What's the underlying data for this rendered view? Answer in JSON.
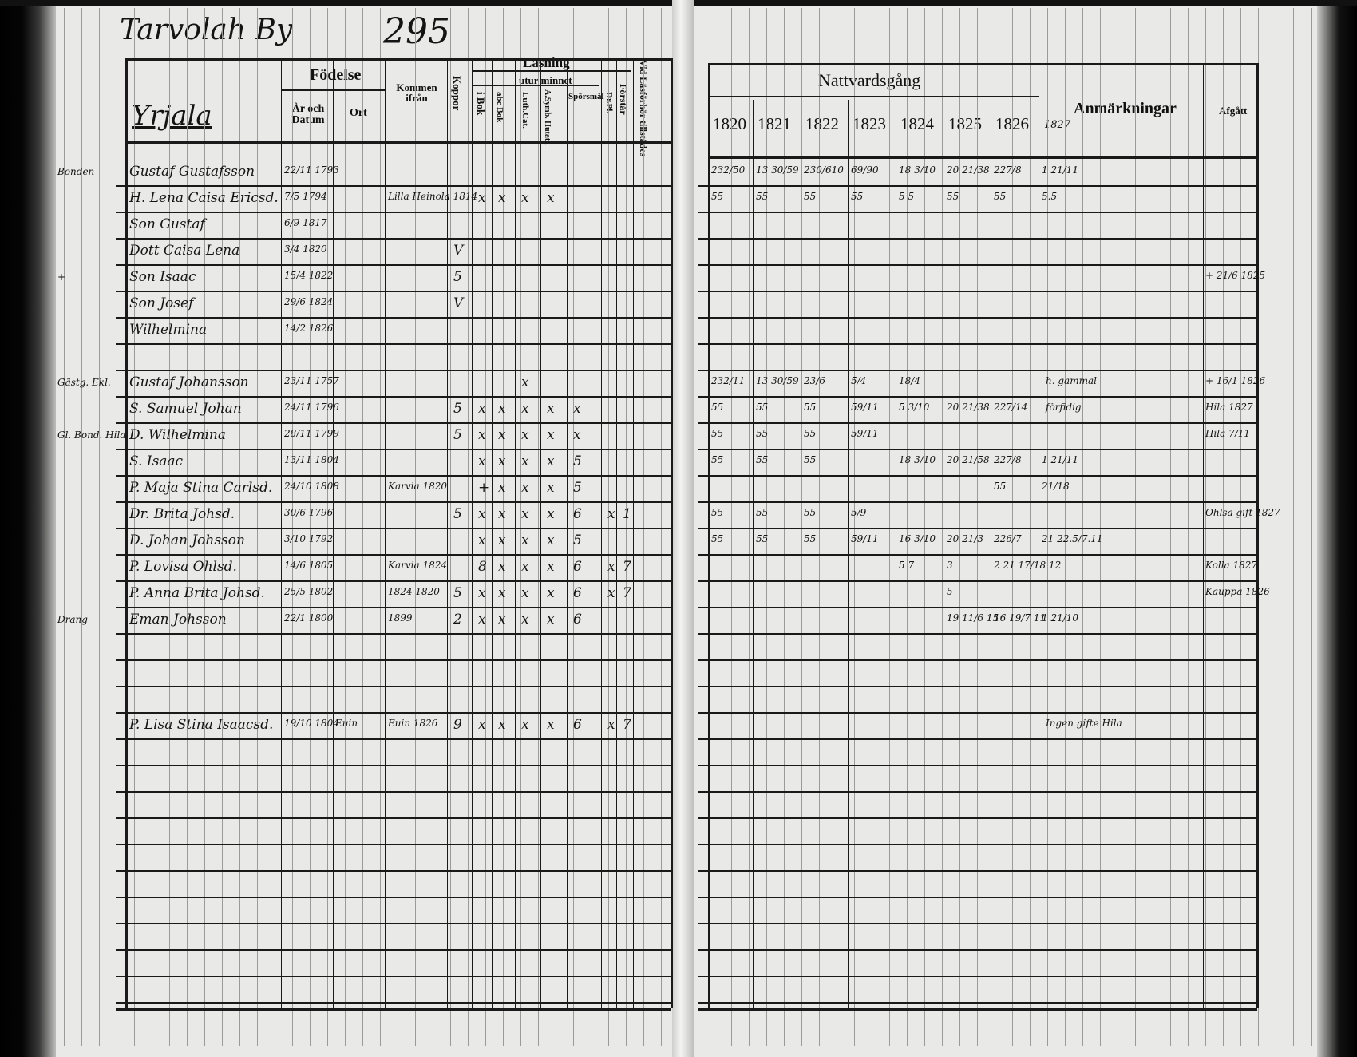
{
  "header": {
    "village": "Tarvolah By",
    "page_number": "295",
    "parish": "Yrjala"
  },
  "left_headers": {
    "fodelse": "Födelse",
    "ar_och_datum": "År och Datum",
    "ort": "Ort",
    "kommen_ifran": "Kommen ifrån",
    "koppor": "Koppor",
    "lasning": "Läsning",
    "utur_minnet": "utur minnet",
    "i_bok": "i Bok",
    "abc_bok": "abc Bok",
    "luth_cat": "Luth.Cat.",
    "a_symb": "A.Symb. Hutatu",
    "sporsmal": "Spörsmål",
    "dr_pl": "Dr.Pl.",
    "forstar": "Förstår",
    "vid_lasforhor": "Vid Läsförhör tillstädes"
  },
  "right_headers": {
    "nattvardsgang": "Nattvardsgång",
    "years": [
      "1820",
      "1821",
      "1822",
      "1823",
      "1824",
      "1825",
      "1826"
    ],
    "year_extra": "1827",
    "anmarkningar": "Anmärkningar",
    "afgatt": "Afgått"
  },
  "margin_notes": [
    {
      "row": 0,
      "text": "Bonden"
    },
    {
      "row": 4,
      "text": "+"
    },
    {
      "row": 8,
      "text": "Gästg. Ekl."
    },
    {
      "row": 10,
      "text": "Gl. Bond. Hila"
    },
    {
      "row": 17,
      "text": "Drang"
    }
  ],
  "rows": [
    {
      "row": 0,
      "name": "Gustaf Gustafsson",
      "date": "22/11 1793",
      "place": "",
      "from": "",
      "marks": [
        "",
        "",
        "",
        "",
        "",
        "",
        "",
        "",
        ""
      ],
      "communion": [
        "232/50",
        "13 30/59",
        "230/610",
        "69/90",
        "18 3/10",
        "20 21/38",
        "227/8",
        "1 21/11"
      ],
      "remark": "",
      "afgatt": ""
    },
    {
      "row": 1,
      "name": "H. Lena Caisa Ericsd.",
      "date": "7/5 1794",
      "place": "",
      "from": "Lilla Heinola 1814",
      "marks": [
        "",
        "x",
        "x",
        "x",
        "x",
        "",
        "",
        "",
        ""
      ],
      "communion": [
        "55",
        "55",
        "55",
        "55",
        "5 5",
        "55",
        "55",
        "5.5"
      ],
      "remark": "",
      "afgatt": ""
    },
    {
      "row": 2,
      "name": "Son Gustaf",
      "date": "6/9 1817",
      "place": "",
      "from": "",
      "marks": [
        "",
        "",
        "",
        "",
        "",
        "",
        "",
        "",
        ""
      ],
      "communion": [
        "",
        "",
        "",
        "",
        "",
        "",
        "",
        "",
        ""
      ],
      "remark": "",
      "afgatt": ""
    },
    {
      "row": 3,
      "name": "Dott Caisa Lena",
      "date": "3/4 1820",
      "place": "",
      "from": "",
      "marks": [
        "V",
        "",
        "",
        "",
        "",
        "",
        "",
        "",
        ""
      ],
      "communion": [
        "",
        "",
        "",
        "",
        "",
        "",
        "",
        ""
      ],
      "remark": "",
      "afgatt": ""
    },
    {
      "row": 4,
      "name": "Son Isaac",
      "date": "15/4 1822",
      "place": "",
      "from": "",
      "marks": [
        "5",
        "",
        "",
        "",
        "",
        "",
        "",
        "",
        ""
      ],
      "communion": [
        "",
        "",
        "",
        "",
        "",
        "",
        "",
        ""
      ],
      "remark": "",
      "afgatt": "+ 21/6 1825"
    },
    {
      "row": 5,
      "name": "Son Josef",
      "date": "29/6 1824",
      "place": "",
      "from": "",
      "marks": [
        "V",
        "",
        "",
        "",
        "",
        "",
        "",
        "",
        ""
      ],
      "communion": [
        "",
        "",
        "",
        "",
        "",
        "",
        "",
        ""
      ],
      "remark": "",
      "afgatt": ""
    },
    {
      "row": 6,
      "name": "Wilhelmina",
      "date": "14/2 1826",
      "place": "",
      "from": "",
      "marks": [
        "",
        "",
        "",
        "",
        "",
        "",
        "",
        "",
        ""
      ],
      "communion": [
        "",
        "",
        "",
        "",
        "",
        "",
        "",
        ""
      ],
      "remark": "",
      "afgatt": ""
    },
    {
      "row": 8,
      "name": "Gustaf Johansson",
      "date": "23/11 1757",
      "place": "",
      "from": "",
      "marks": [
        "",
        "",
        "",
        "x",
        "",
        "",
        "",
        "",
        ""
      ],
      "communion": [
        "232/11",
        "13 30/59",
        "23/6",
        "5/4",
        "18/4",
        "",
        "",
        ""
      ],
      "remark": "h. gammal",
      "afgatt": "+ 16/1 1826"
    },
    {
      "row": 9,
      "name": "S. Samuel Johan",
      "date": "24/11 1796",
      "place": "",
      "from": "",
      "marks": [
        "5",
        "x",
        "x",
        "x",
        "x",
        "x",
        "",
        "",
        ""
      ],
      "communion": [
        "55",
        "55",
        "55",
        "59/11",
        "5 3/10",
        "20 21/38",
        "227/14",
        ""
      ],
      "remark": "förfidig",
      "afgatt": "Hila 1827"
    },
    {
      "row": 10,
      "name": "D. Wilhelmina",
      "date": "28/11 1799",
      "place": "",
      "from": "",
      "marks": [
        "5",
        "x",
        "x",
        "x",
        "x",
        "x",
        "",
        "",
        ""
      ],
      "communion": [
        "55",
        "55",
        "55",
        "59/11",
        "",
        "",
        "",
        ""
      ],
      "remark": "",
      "afgatt": "Hila 7/11"
    },
    {
      "row": 11,
      "name": "S. Isaac",
      "date": "13/11 1804",
      "place": "",
      "from": "",
      "marks": [
        "",
        "x",
        "x",
        "x",
        "x",
        "5",
        "",
        "",
        ""
      ],
      "communion": [
        "55",
        "55",
        "55",
        "",
        "18 3/10",
        "20 21/58",
        "227/8",
        "1 21/11"
      ],
      "remark": "",
      "afgatt": ""
    },
    {
      "row": 12,
      "name": "P. Maja Stina Carlsd.",
      "date": "24/10 1808",
      "place": "",
      "from": "Karvia 1820",
      "marks": [
        "",
        "+",
        "x",
        "x",
        "x",
        "5",
        "",
        "",
        ""
      ],
      "communion": [
        "",
        "",
        "",
        "",
        "",
        "",
        "55",
        "21/18"
      ],
      "remark": "",
      "afgatt": ""
    },
    {
      "row": 13,
      "name": "Dr. Brita Johsd.",
      "date": "30/6 1796",
      "place": "",
      "from": "",
      "marks": [
        "5",
        "x",
        "x",
        "x",
        "x",
        "6",
        "x",
        "1",
        ""
      ],
      "communion": [
        "55",
        "55",
        "55",
        "5/9",
        "",
        "",
        "",
        ""
      ],
      "remark": "",
      "afgatt": "Ohlsa gift 1827"
    },
    {
      "row": 14,
      "name": "D. Johan Johsson",
      "date": "3/10 1792",
      "place": "",
      "from": "",
      "marks": [
        "",
        "x",
        "x",
        "x",
        "x",
        "5",
        "",
        "",
        ""
      ],
      "communion": [
        "55",
        "55",
        "55",
        "59/11",
        "16 3/10",
        "20 21/3",
        "226/7",
        "21 22.5/7.11"
      ],
      "remark": "",
      "afgatt": ""
    },
    {
      "row": 15,
      "name": "P. Lovisa Ohlsd.",
      "date": "14/6 1805",
      "place": "",
      "from": "Karvia 1824",
      "marks": [
        "",
        "8",
        "x",
        "x",
        "x",
        "6",
        "x",
        "7",
        ""
      ],
      "communion": [
        "",
        "",
        "",
        "",
        "5 7",
        "3",
        "2 21 17/18 12",
        ""
      ],
      "remark": "",
      "afgatt": "Kolla 1827"
    },
    {
      "row": 16,
      "name": "P. Anna Brita Johsd.",
      "date": "25/5 1802",
      "place": "",
      "from": "1824 1820",
      "marks": [
        "5",
        "x",
        "x",
        "x",
        "x",
        "6",
        "x",
        "7",
        ""
      ],
      "communion": [
        "",
        "",
        "",
        "",
        "",
        "5",
        "",
        ""
      ],
      "remark": "",
      "afgatt": "Kauppa 1826"
    },
    {
      "row": 17,
      "name": "Eman Johsson",
      "date": "22/1 1800",
      "place": "",
      "from": "1899",
      "marks": [
        "2",
        "x",
        "x",
        "x",
        "x",
        "6",
        "",
        "",
        ""
      ],
      "communion": [
        "",
        "",
        "",
        "",
        "",
        "19 11/6 15",
        "16 19/7 11",
        "1 21/10"
      ],
      "remark": "",
      "afgatt": ""
    },
    {
      "row": 21,
      "name": "P. Lisa Stina Isaacsd.",
      "date": "19/10 1804",
      "place": "Euin",
      "from": "Euin 1826",
      "marks": [
        "9",
        "x",
        "x",
        "x",
        "x",
        "6",
        "x",
        "7",
        ""
      ],
      "communion": [
        "",
        "",
        "",
        "",
        "",
        "",
        "",
        ""
      ],
      "remark": "Ingen gifte Hila",
      "afgatt": ""
    }
  ]
}
